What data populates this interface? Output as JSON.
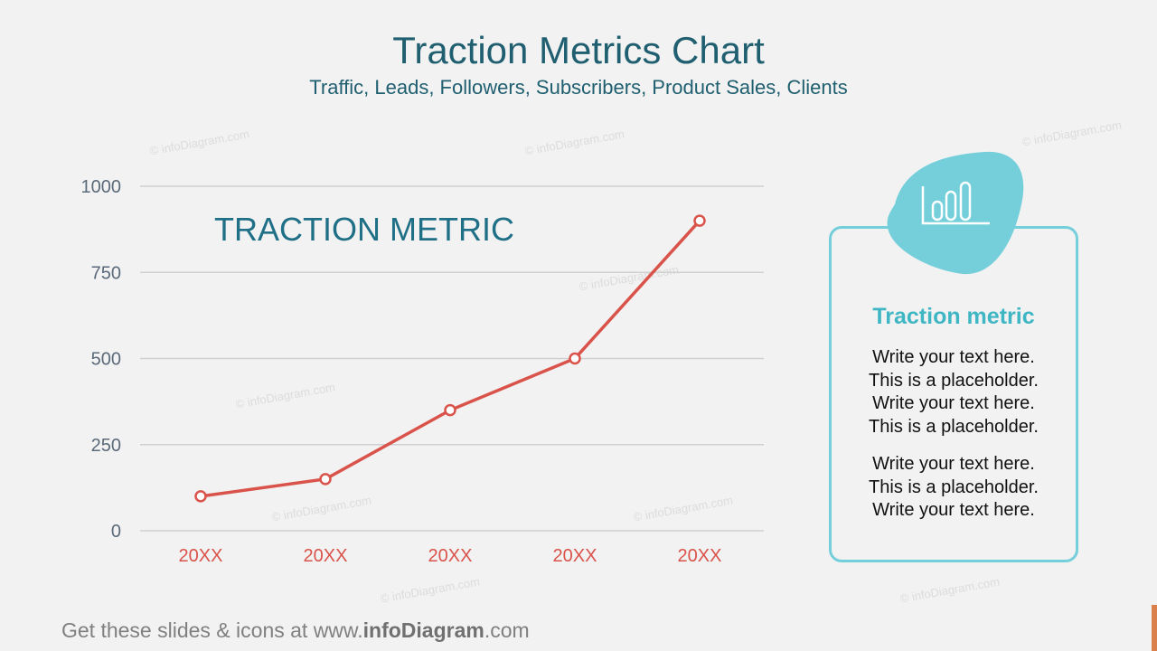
{
  "header": {
    "title": "Traction Metrics Chart",
    "subtitle": "Traffic, Leads, Followers, Subscribers, Product Sales, Clients"
  },
  "watermark": "© infoDiagram.com",
  "chart_data": {
    "type": "line",
    "title": "TRACTION METRIC",
    "categories": [
      "20XX",
      "20XX",
      "20XX",
      "20XX",
      "20XX"
    ],
    "series": [
      {
        "values": [
          100,
          150,
          350,
          500,
          900
        ],
        "color": "#d9534a"
      }
    ],
    "ylim": [
      0,
      1000
    ],
    "yticks": [
      0,
      250,
      500,
      750,
      1000
    ],
    "grid": true,
    "colors": {
      "title": "#1f6f86",
      "tick_y": "#5a6a7a",
      "tick_x": "#d9534a",
      "grid": "#d0d0d0"
    }
  },
  "card": {
    "icon": "bar-chart-icon",
    "title": "Traction metric",
    "paragraph1": [
      "Write your text here.",
      "This is a placeholder.",
      "Write your text here.",
      "This is a placeholder."
    ],
    "paragraph2": [
      "Write your text here.",
      "This is a placeholder.",
      "Write your text here."
    ],
    "accent": "#74cfda"
  },
  "footer": {
    "prefix": "Get these slides & icons at www.",
    "brand": "infoDiagram",
    "suffix": ".com"
  }
}
